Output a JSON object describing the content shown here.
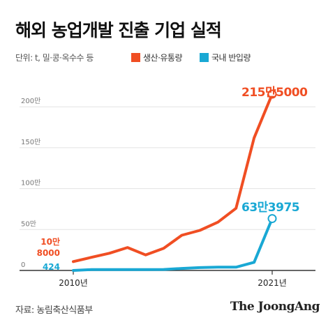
{
  "title": "해외 농업개발 진출 기업 실적",
  "unit_label": "단위: t, 밀·콩·옥수수 등",
  "source": "자료: 농림축산식품부",
  "brand": "The JoongAng",
  "colors": {
    "production": "#f04e23",
    "import": "#19a8d4",
    "grid": "#e3e3e3",
    "axis": "#333333",
    "tick": "#777777"
  },
  "chart_data": {
    "type": "line",
    "title": "해외 농업개발 진출 기업 실적",
    "xlabel": "",
    "ylabel": "",
    "x": [
      2010,
      2011,
      2012,
      2013,
      2014,
      2015,
      2016,
      2017,
      2018,
      2019,
      2020,
      2021
    ],
    "x_tick_labels": [
      "2010년",
      "2021년"
    ],
    "x_tick_values": [
      2010,
      2021
    ],
    "ylim": [
      0,
      2300000
    ],
    "y_ticks": [
      0,
      500000,
      1000000,
      1500000,
      2000000
    ],
    "y_tick_labels": [
      "0",
      "50만",
      "100만",
      "150만",
      "200만"
    ],
    "grid": true,
    "legend": "top",
    "series": [
      {
        "name": "생산·유통량",
        "color": "#f04e23",
        "values": [
          108000,
          160000,
          210000,
          280000,
          190000,
          270000,
          430000,
          490000,
          590000,
          760000,
          1620000,
          2155000
        ],
        "start_label": [
          "10만",
          "8000"
        ],
        "end_label": "215만5000"
      },
      {
        "name": "국내 반입량",
        "color": "#19a8d4",
        "values": [
          424,
          10000,
          10000,
          10000,
          10000,
          12000,
          25000,
          35000,
          40000,
          40000,
          100000,
          633975
        ],
        "start_label": [
          "424"
        ],
        "end_label": "63만3975"
      }
    ]
  }
}
